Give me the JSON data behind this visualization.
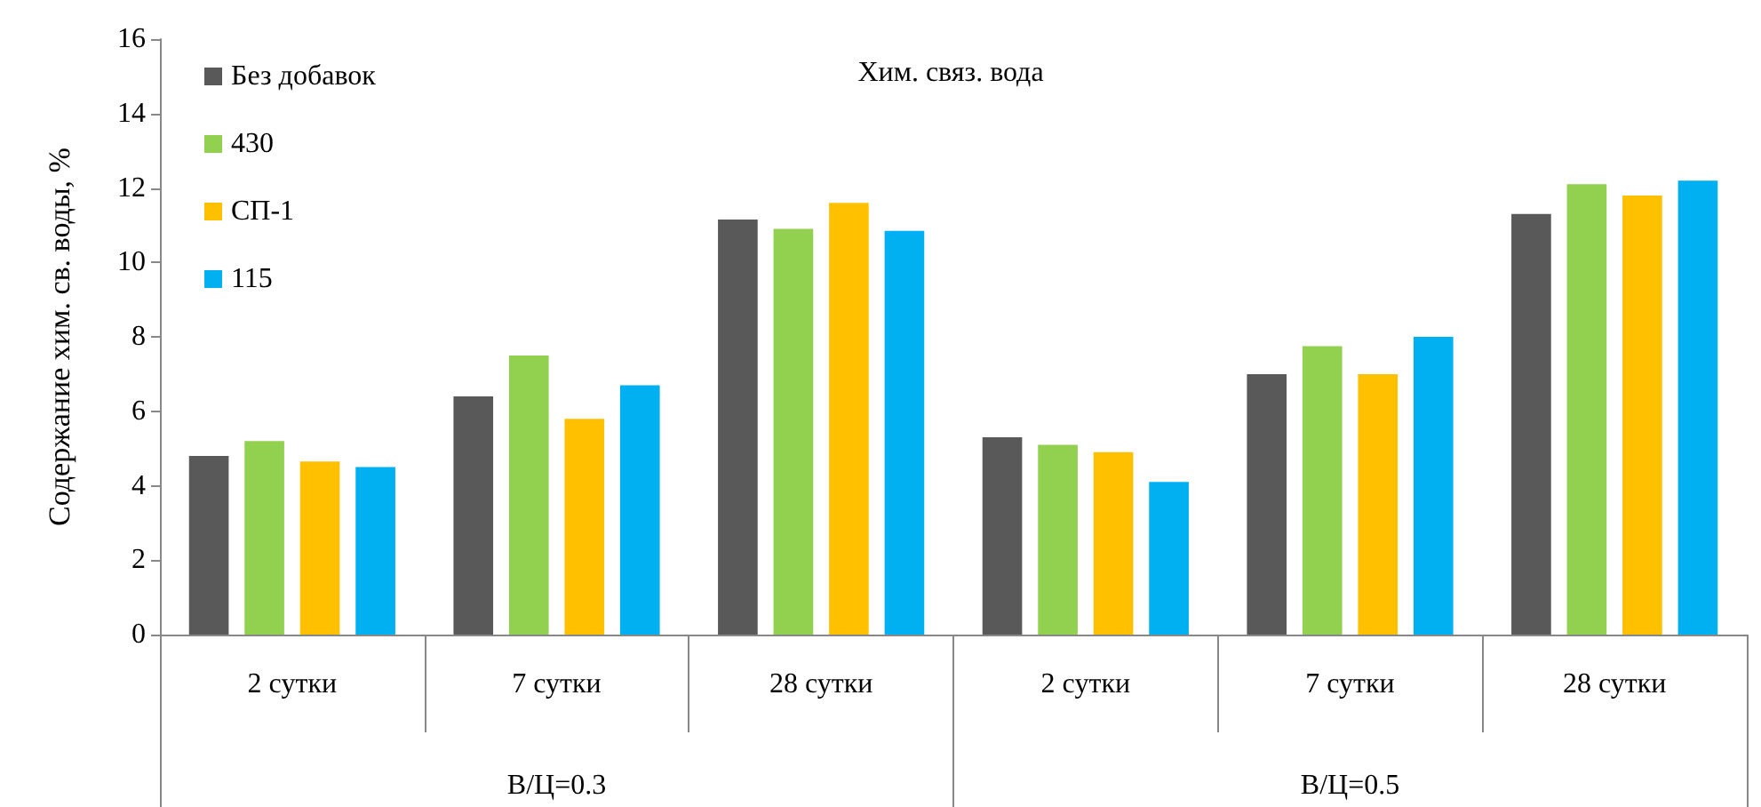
{
  "chart_data": {
    "type": "bar",
    "title": "Хим. связ. вода",
    "ylabel": "Содержание хим. св. воды, %",
    "categories": [
      "2 сутки",
      "7 сутки",
      "28 сутки",
      "2 сутки",
      "7 сутки",
      "28 сутки"
    ],
    "annotations": [
      "В/Ц=0.3",
      "В/Ц=0.5"
    ],
    "series": [
      {
        "name": "Без добавок",
        "color": "#595959",
        "values": [
          4.8,
          6.4,
          11.15,
          5.3,
          7.0,
          11.3
        ]
      },
      {
        "name": "430",
        "color": "#92d050",
        "values": [
          5.2,
          7.5,
          10.9,
          5.1,
          7.75,
          12.1
        ]
      },
      {
        "name": "СП-1",
        "color": "#ffc000",
        "values": [
          4.65,
          5.8,
          11.6,
          4.9,
          7.0,
          11.8
        ]
      },
      {
        "name": "115",
        "color": "#00b0f0",
        "values": [
          4.5,
          6.7,
          10.85,
          4.1,
          8.0,
          12.2
        ]
      }
    ],
    "ylim": [
      0,
      16
    ],
    "yticks": [
      0,
      2,
      4,
      6,
      8,
      10,
      12,
      14,
      16
    ],
    "grid": false,
    "legend": "top left"
  }
}
